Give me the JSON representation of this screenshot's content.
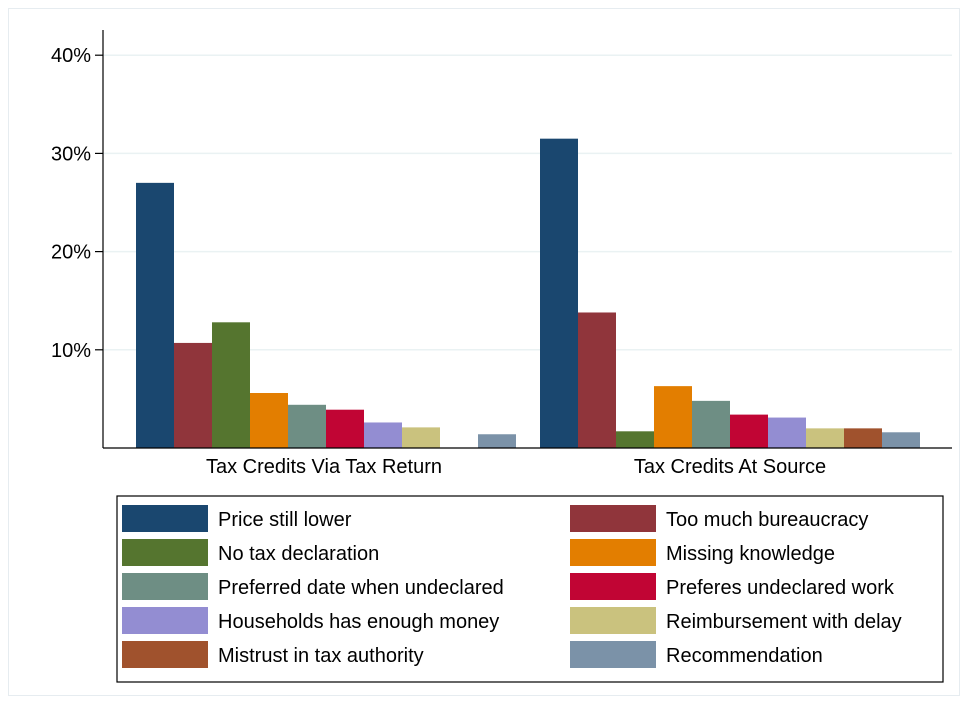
{
  "chart_data": {
    "type": "bar",
    "categories": [
      "Tax Credits Via Tax Return",
      "Tax Credits At Source"
    ],
    "ylim": [
      0,
      42
    ],
    "yticks": [
      10,
      20,
      30,
      40
    ],
    "ytick_labels": [
      "10%",
      "20%",
      "30%",
      "40%"
    ],
    "grid": true,
    "legend_position": "bottom",
    "series": [
      {
        "name": "Price still lower",
        "color": "#1a476f",
        "values": [
          27.0,
          31.5
        ]
      },
      {
        "name": "Too much bureaucracy",
        "color": "#90353b",
        "values": [
          10.7,
          13.8
        ]
      },
      {
        "name": "No tax declaration",
        "color": "#55752f",
        "values": [
          12.8,
          1.7
        ]
      },
      {
        "name": "Missing knowledge",
        "color": "#e37e00",
        "values": [
          5.6,
          6.3
        ]
      },
      {
        "name": "Preferred date when undeclared",
        "color": "#6e8e84",
        "values": [
          4.4,
          4.8
        ]
      },
      {
        "name": "Preferes undeclared work",
        "color": "#c10534",
        "values": [
          3.9,
          3.4
        ]
      },
      {
        "name": "Households has enough money",
        "color": "#938dd2",
        "values": [
          2.6,
          3.1
        ]
      },
      {
        "name": "Reimbursement with delay",
        "color": "#cac27e",
        "values": [
          2.1,
          2.0
        ]
      },
      {
        "name": "Mistrust in tax authority",
        "color": "#a0522d",
        "values": [
          0,
          2.0
        ]
      },
      {
        "name": "Recommendation",
        "color": "#7b92a8",
        "values": [
          1.4,
          1.6
        ]
      }
    ]
  }
}
